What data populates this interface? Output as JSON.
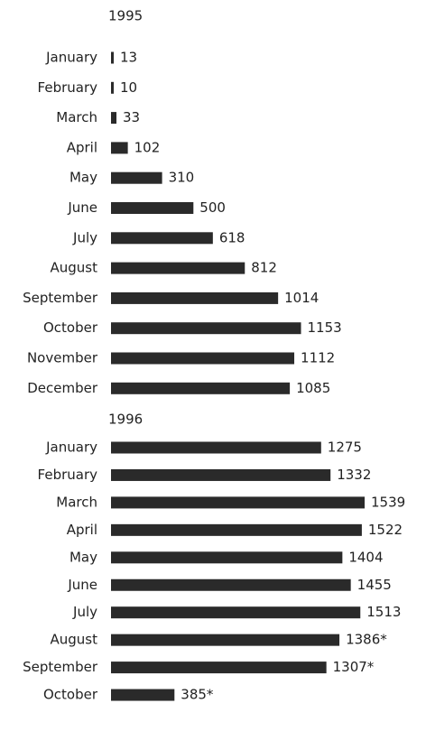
{
  "chart_data": [
    {
      "type": "bar",
      "orientation": "horizontal",
      "title": "1995",
      "color": "#2a2a2a",
      "categories": [
        "January",
        "February",
        "March",
        "April",
        "May",
        "June",
        "July",
        "August",
        "September",
        "October",
        "November",
        "December"
      ],
      "values": [
        13,
        10,
        33,
        102,
        310,
        500,
        618,
        812,
        1014,
        1153,
        1112,
        1085
      ]
    },
    {
      "type": "bar",
      "orientation": "horizontal",
      "title": "1996",
      "color": "#2a2a2a",
      "categories": [
        "January",
        "February",
        "March",
        "April",
        "May",
        "June",
        "July",
        "August",
        "September",
        "October"
      ],
      "values": [
        1275,
        1332,
        1539,
        1522,
        1404,
        1455,
        1513,
        1386,
        1307,
        385
      ],
      "value_labels": [
        "1275",
        "1332",
        "1539",
        "1522",
        "1404",
        "1455",
        "1513",
        "1386*",
        "1307*",
        "385*"
      ]
    }
  ]
}
